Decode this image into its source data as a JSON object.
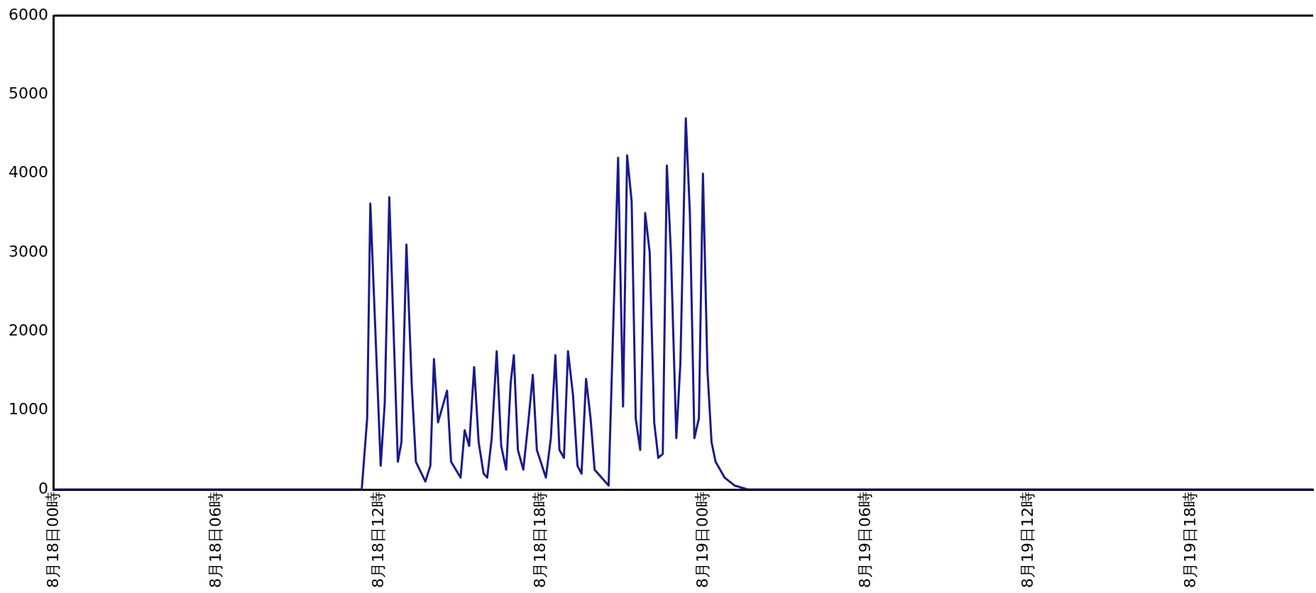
{
  "chart_data": {
    "type": "line",
    "grid": false,
    "legend": false,
    "marker": "none",
    "line_style": "solid",
    "xlim": [
      "--08-18T00:00",
      "--08-19T22:30"
    ],
    "xticks": [
      {
        "value": "--08-18T00:00",
        "label": "8月18日00時"
      },
      {
        "value": "--08-18T06:00",
        "label": "8月18日06時"
      },
      {
        "value": "--08-18T12:00",
        "label": "8月18日12時"
      },
      {
        "value": "--08-18T18:00",
        "label": "8月18日18時"
      },
      {
        "value": "--08-19T00:00",
        "label": "8月19日00時"
      },
      {
        "value": "--08-19T06:00",
        "label": "8月19日06時"
      },
      {
        "value": "--08-19T12:00",
        "label": "8月19日12時"
      },
      {
        "value": "--08-19T18:00",
        "label": "8月19日18時"
      }
    ],
    "ylim": [
      0,
      6000
    ],
    "yticks": [
      0,
      1000,
      2000,
      3000,
      4000,
      5000,
      6000
    ],
    "series": [
      {
        "color": "#1a1a8c",
        "x": [
          "--08-18T00:00",
          "--08-18T11:22",
          "--08-18T11:34",
          "--08-18T11:41",
          "--08-18T12:04",
          "--08-18T12:13",
          "--08-18T12:23",
          "--08-18T12:42",
          "--08-18T12:50",
          "--08-18T13:01",
          "--08-18T13:13",
          "--08-18T13:22",
          "--08-18T13:43",
          "--08-18T13:54",
          "--08-18T14:02",
          "--08-18T14:11",
          "--08-18T14:31",
          "--08-18T14:40",
          "--08-18T15:01",
          "--08-18T15:10",
          "--08-18T15:20",
          "--08-18T15:31",
          "--08-18T15:41",
          "--08-18T15:52",
          "--08-18T16:00",
          "--08-18T16:10",
          "--08-18T16:21",
          "--08-18T16:31",
          "--08-18T16:42",
          "--08-18T16:52",
          "--08-18T16:59",
          "--08-18T17:08",
          "--08-18T17:20",
          "--08-18T17:31",
          "--08-18T17:41",
          "--08-18T17:50",
          "--08-18T18:10",
          "--08-18T18:21",
          "--08-18T18:31",
          "--08-18T18:40",
          "--08-18T18:50",
          "--08-18T18:59",
          "--08-18T19:10",
          "--08-18T19:20",
          "--08-18T19:29",
          "--08-18T19:39",
          "--08-18T19:49",
          "--08-18T19:58",
          "--08-18T20:29",
          "--08-18T20:50",
          "--08-18T21:01",
          "--08-18T21:10",
          "--08-18T21:20",
          "--08-18T21:29",
          "--08-18T21:39",
          "--08-18T21:50",
          "--08-18T22:00",
          "--08-18T22:10",
          "--08-18T22:19",
          "--08-18T22:29",
          "--08-18T22:38",
          "--08-18T22:47",
          "--08-18T22:59",
          "--08-18T23:08",
          "--08-18T23:20",
          "--08-18T23:29",
          "--08-18T23:39",
          "--08-18T23:49",
          "--08-18T23:58",
          "--08-19T00:08",
          "--08-19T00:17",
          "--08-19T00:26",
          "--08-19T00:46",
          "--08-19T01:08",
          "--08-19T01:37",
          "--08-19T22:30"
        ],
        "values": [
          0,
          0,
          900,
          3620,
          300,
          1100,
          3700,
          350,
          600,
          3100,
          1300,
          350,
          100,
          300,
          1650,
          850,
          1250,
          350,
          150,
          750,
          550,
          1550,
          600,
          200,
          150,
          650,
          1750,
          550,
          250,
          1350,
          1700,
          500,
          250,
          850,
          1450,
          500,
          150,
          650,
          1700,
          500,
          400,
          1750,
          1200,
          300,
          200,
          1400,
          900,
          250,
          50,
          4200,
          1050,
          4230,
          3650,
          900,
          500,
          3500,
          3000,
          850,
          400,
          450,
          4100,
          3000,
          650,
          1600,
          4700,
          3500,
          650,
          900,
          4000,
          1500,
          600,
          350,
          150,
          50,
          0,
          0
        ]
      }
    ]
  }
}
